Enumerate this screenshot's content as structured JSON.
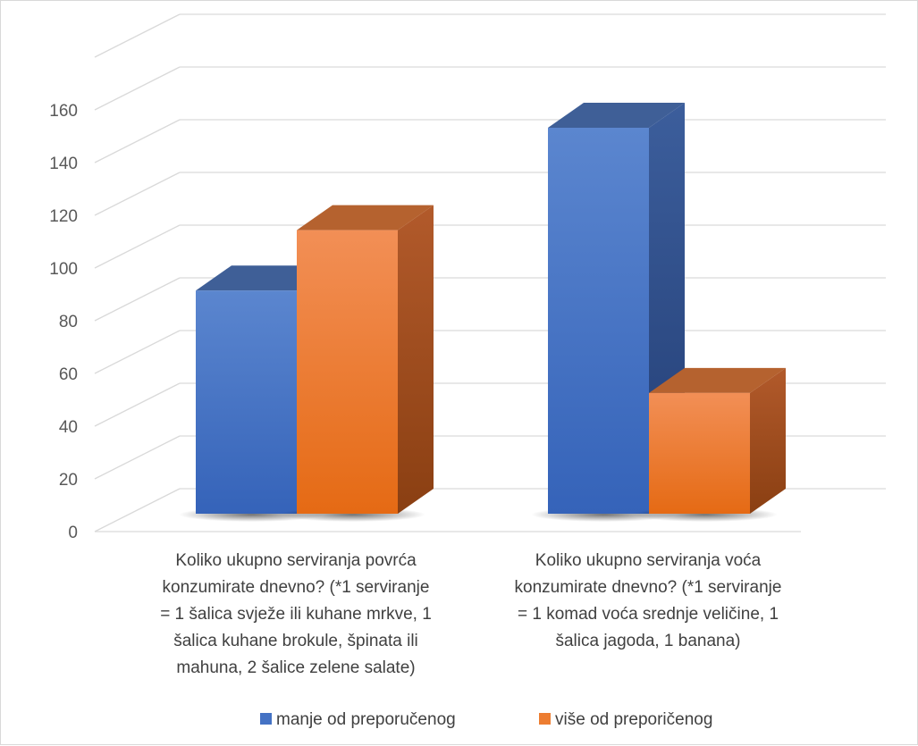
{
  "chart_data": {
    "type": "bar",
    "title": "",
    "xlabel": "",
    "ylabel": "",
    "ylim": [
      0,
      160
    ],
    "yticks": [
      0,
      20,
      40,
      60,
      80,
      100,
      120,
      140,
      160
    ],
    "grid": true,
    "legend_position": "bottom",
    "categories": [
      "Koliko ukupno serviranja povrća konzumirate dnevno? (*1 serviranje = 1 šalica svježe ili kuhane mrkve, 1 šalica kuhane brokule, špinata ili mahuna, 2 šalice zelene salate)",
      "Koliko ukupno serviranja voća konzumirate dnevno? (*1 serviranje = 1 komad voća srednje veličine, 1 šalica jagoda, 1 banana)"
    ],
    "category_lines": [
      [
        "Koliko ukupno serviranja povrća",
        "konzumirate dnevno? (*1 serviranje",
        "= 1 šalica svježe ili kuhane mrkve, 1",
        "šalica kuhane brokule, špinata ili",
        "mahuna, 2 šalice zelene salate)"
      ],
      [
        "Koliko ukupno serviranja voća",
        "konzumirate dnevno? (*1 serviranje",
        "= 1 komad voća srednje veličine, 1",
        "šalica jagoda, 1 banana)"
      ]
    ],
    "series": [
      {
        "name": "manje od preporučenog",
        "values": [
          85,
          147
        ],
        "color": "#4472C4"
      },
      {
        "name": "više od preporičenog",
        "values": [
          108,
          46
        ],
        "color": "#ED7D31"
      }
    ]
  }
}
